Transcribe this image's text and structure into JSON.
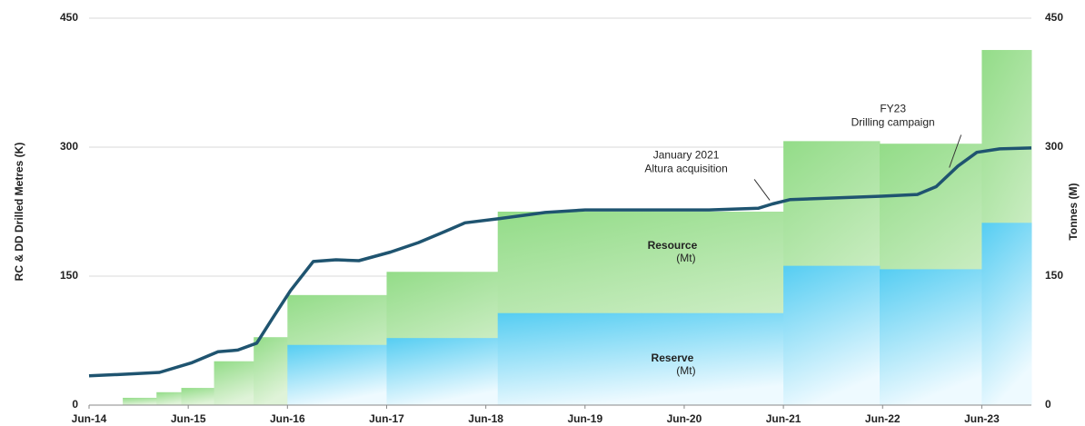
{
  "chart_data": {
    "type": "combo",
    "ylabel": "RC & DD Drilled Metres (K)",
    "y2label": "Tonnes (M)",
    "xlim": [
      2014.5,
      2024.0
    ],
    "xticks": [
      {
        "value": 2014.5,
        "label": "Jun-14"
      },
      {
        "value": 2015.5,
        "label": "Jun-15"
      },
      {
        "value": 2016.5,
        "label": "Jun-16"
      },
      {
        "value": 2017.5,
        "label": "Jun-17"
      },
      {
        "value": 2018.5,
        "label": "Jun-18"
      },
      {
        "value": 2019.5,
        "label": "Jun-19"
      },
      {
        "value": 2020.5,
        "label": "Jun-20"
      },
      {
        "value": 2021.5,
        "label": "Jun-21"
      },
      {
        "value": 2022.5,
        "label": "Jun-22"
      },
      {
        "value": 2023.5,
        "label": "Jun-23"
      }
    ],
    "ylim": [
      0,
      450
    ],
    "yticks": [
      0,
      150,
      300,
      450
    ],
    "y2lim": [
      0,
      450
    ],
    "y2ticks": [
      0,
      150,
      300,
      450
    ],
    "grid": true,
    "steps": [
      {
        "name": "Resource",
        "sublabel": "(Mt)",
        "axis": "y2",
        "color_top": "#93dc88",
        "color_bottom": "#dff3d8",
        "bins": [
          2014.84,
          2015.18,
          2015.43,
          2015.76,
          2016.16,
          2016.5,
          2017.5,
          2018.62,
          2021.5,
          2022.47,
          2023.5,
          2024.0
        ],
        "values": [
          8.5,
          15,
          20,
          51,
          79,
          128,
          155,
          225,
          307,
          304,
          413
        ]
      },
      {
        "name": "Reserve",
        "sublabel": "(Mt)",
        "axis": "y2",
        "color_top": "#55cdf2",
        "color_bottom": "#eefaff",
        "bins": [
          2016.5,
          2017.5,
          2018.62,
          2021.5,
          2022.47,
          2023.5,
          2024.0
        ],
        "values": [
          70,
          78,
          107,
          162,
          158,
          212
        ]
      }
    ],
    "line": {
      "color": "#1f5470",
      "x": [
        2014.5,
        2014.88,
        2015.21,
        2015.53,
        2015.8,
        2016.0,
        2016.19,
        2016.35,
        2016.53,
        2016.76,
        2016.99,
        2017.22,
        2017.54,
        2017.82,
        2018.09,
        2018.29,
        2018.64,
        2019.1,
        2019.5,
        2020.01,
        2020.75,
        2021.25,
        2021.39,
        2021.57,
        2022.03,
        2022.49,
        2022.85,
        2023.04,
        2023.26,
        2023.45,
        2023.68,
        2024.0
      ],
      "values": [
        34,
        36,
        38,
        49,
        62,
        64,
        72,
        101,
        133,
        167,
        169,
        168,
        178,
        189,
        202,
        212,
        217,
        224,
        227,
        227,
        227,
        229,
        234,
        239,
        241,
        243,
        245,
        254,
        278,
        294,
        298,
        299
      ]
    },
    "annotations": [
      {
        "lines": [
          "January 2021",
          "Altura acquisition"
        ],
        "x": 2021.39,
        "y": 234
      },
      {
        "lines": [
          "FY23",
          "Drilling campaign"
        ],
        "x": 2023.2,
        "y": 272
      }
    ]
  }
}
